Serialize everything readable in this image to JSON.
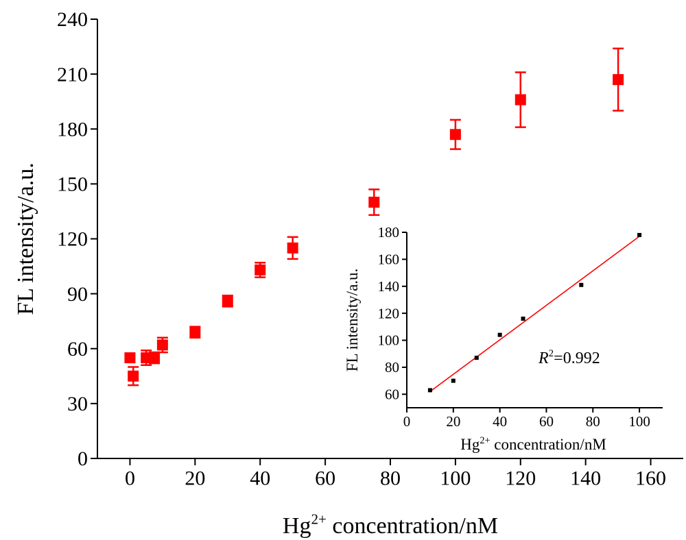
{
  "chart_data": [
    {
      "type": "scatter",
      "xlabel": "Hg",
      "xlabel_sup": "2+",
      "xlabel_rest": " concentration/nM",
      "ylabel": "FL intensity/a.u.",
      "xlim": [
        -10,
        170
      ],
      "ylim": [
        0,
        240
      ],
      "xticks": [
        0,
        20,
        40,
        60,
        80,
        100,
        120,
        140,
        160
      ],
      "yticks": [
        0,
        30,
        60,
        90,
        120,
        150,
        180,
        210,
        240
      ],
      "marker_color": "#ff0000",
      "series": [
        {
          "x": [
            0,
            1,
            5,
            7.5,
            10,
            20,
            30,
            40,
            50,
            75,
            100,
            120,
            150
          ],
          "y": [
            55,
            45,
            55,
            55,
            62,
            69,
            86,
            103,
            115,
            140,
            177,
            196,
            207
          ],
          "err": [
            0,
            5,
            4,
            3,
            4,
            3,
            3,
            4,
            6,
            7,
            8,
            15,
            17
          ]
        }
      ]
    },
    {
      "type": "scatter",
      "xlabel": "Hg",
      "xlabel_sup": "2+",
      "xlabel_rest": " concentration/nM",
      "ylabel": "FL intensity/a.u.",
      "xlim": [
        0,
        110
      ],
      "ylim": [
        50,
        180
      ],
      "xticks": [
        0,
        20,
        40,
        60,
        80,
        100
      ],
      "yticks": [
        60,
        80,
        100,
        120,
        140,
        160,
        180
      ],
      "marker_color": "#000000",
      "fit_color": "#ff0000",
      "series": [
        {
          "x": [
            10,
            20,
            30,
            40,
            50,
            75,
            100
          ],
          "y": [
            63,
            70,
            87,
            104,
            116,
            141,
            178
          ]
        }
      ],
      "fit": {
        "x": [
          10,
          100
        ],
        "y": [
          62,
          177
        ]
      },
      "annotation": {
        "r_label": "R",
        "r_sup": "2",
        "r_value": "=0.992"
      }
    }
  ]
}
